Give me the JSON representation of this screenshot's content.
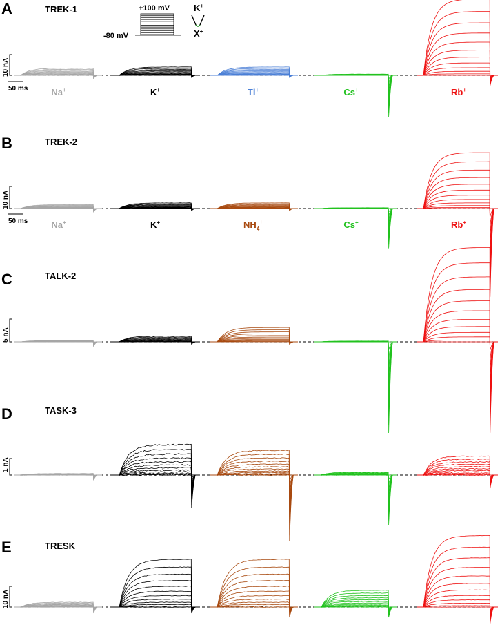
{
  "panels": [
    {
      "label": "A",
      "channel": "TREK-1",
      "scale": "10 nA",
      "time_bar": "50 ms",
      "ions": [
        {
          "base": "Na",
          "charge": "+",
          "color": "#a6a6a6",
          "amp": 0.3,
          "tail": 0.15,
          "noise": 0.2
        },
        {
          "base": "K",
          "charge": "+",
          "color": "#000000",
          "amp": 0.35,
          "tail": 0.1,
          "noise": 0.2
        },
        {
          "base": "Tl",
          "charge": "+",
          "color": "#4a7fd6",
          "amp": 0.35,
          "tail": 0.1,
          "noise": 0.1
        },
        {
          "base": "Cs",
          "charge": "+",
          "color": "#22c21f",
          "amp": 0.05,
          "tail": 2.0,
          "noise": 0.1
        },
        {
          "base": "Rb",
          "charge": "+",
          "color": "#ee1111",
          "amp": 3.2,
          "tail": 0.5,
          "noise": 0.0
        }
      ]
    },
    {
      "label": "B",
      "channel": "TREK-2",
      "scale": "10 nA",
      "time_bar": "50 ms",
      "ions": [
        {
          "base": "Na",
          "charge": "+",
          "color": "#a6a6a6",
          "amp": 0.15,
          "tail": 0.15,
          "noise": 0.1
        },
        {
          "base": "K",
          "charge": "+",
          "color": "#000000",
          "amp": 0.22,
          "tail": 0.1,
          "noise": 0.2
        },
        {
          "base": "NH",
          "sub": "4",
          "charge": "+",
          "color": "#a84a10",
          "amp": 0.22,
          "tail": 0.1,
          "noise": 0.1
        },
        {
          "base": "Cs",
          "charge": "+",
          "color": "#22c21f",
          "amp": 0.03,
          "tail": 1.8,
          "noise": 0.1
        },
        {
          "base": "Rb",
          "charge": "+",
          "color": "#ee1111",
          "amp": 2.2,
          "tail": 4.0,
          "noise": 0.0
        }
      ]
    },
    {
      "label": "C",
      "channel": "TALK-2",
      "scale": "5 nA",
      "time_bar": "",
      "ions": [
        {
          "base": "",
          "charge": "",
          "color": "#a6a6a6",
          "amp": 0.05,
          "tail": 0.2,
          "noise": 0.1
        },
        {
          "base": "",
          "charge": "",
          "color": "#000000",
          "amp": 0.22,
          "tail": 0.1,
          "noise": 0.3
        },
        {
          "base": "",
          "charge": "",
          "color": "#a84a10",
          "amp": 0.55,
          "tail": 0.1,
          "noise": 0.0
        },
        {
          "base": "",
          "charge": "",
          "color": "#22c21f",
          "amp": 0.03,
          "tail": 4.0,
          "noise": 0.1
        },
        {
          "base": "",
          "charge": "",
          "color": "#ee1111",
          "amp": 3.6,
          "tail": 4.0,
          "noise": 0.0
        }
      ]
    },
    {
      "label": "D",
      "channel": "TASK-3",
      "scale": "1 nA",
      "time_bar": "",
      "ions": [
        {
          "base": "",
          "charge": "",
          "color": "#a6a6a6",
          "amp": 0.08,
          "tail": 0.3,
          "noise": 0.3
        },
        {
          "base": "",
          "charge": "",
          "color": "#000000",
          "amp": 1.6,
          "tail": 2.0,
          "noise": 1.0
        },
        {
          "base": "",
          "charge": "",
          "color": "#a84a10",
          "amp": 1.3,
          "tail": 4.0,
          "noise": 0.6
        },
        {
          "base": "",
          "charge": "",
          "color": "#22c21f",
          "amp": 0.15,
          "tail": 3.0,
          "noise": 0.4
        },
        {
          "base": "",
          "charge": "",
          "color": "#ee1111",
          "amp": 1.0,
          "tail": 0.8,
          "noise": 0.6
        }
      ]
    },
    {
      "label": "E",
      "channel": "TRESK",
      "scale": "10 nA",
      "time_bar": "",
      "ions": [
        {
          "base": "",
          "charge": "",
          "color": "#a6a6a6",
          "amp": 0.2,
          "tail": 0.3,
          "noise": 0.3
        },
        {
          "base": "",
          "charge": "",
          "color": "#000000",
          "amp": 2.0,
          "tail": 0.3,
          "noise": 0.4
        },
        {
          "base": "",
          "charge": "",
          "color": "#a84a10",
          "amp": 2.0,
          "tail": 0.5,
          "noise": 0.4
        },
        {
          "base": "",
          "charge": "",
          "color": "#22c21f",
          "amp": 0.7,
          "tail": 0.5,
          "noise": 0.3
        },
        {
          "base": "",
          "charge": "",
          "color": "#ee1111",
          "amp": 3.0,
          "tail": 0.8,
          "noise": 0.2
        }
      ]
    }
  ],
  "protocol": {
    "v_top": "+100 mV",
    "v_hold": "-80 mV",
    "steps": 11,
    "k_ion": "K",
    "x_ion": "X",
    "charge": "+",
    "filter_color": "#1c8a1c"
  }
}
